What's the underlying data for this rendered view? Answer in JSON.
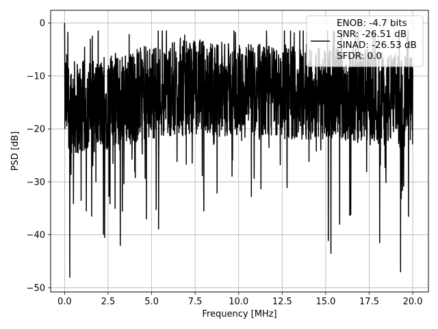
{
  "chart_data": {
    "type": "line",
    "title": "",
    "xlabel": "Frequency [MHz]",
    "ylabel": "PSD [dB]",
    "xlim": [
      -0.8,
      20.9
    ],
    "ylim": [
      -50.8,
      2.4
    ],
    "xticks": [
      0.0,
      2.5,
      5.0,
      7.5,
      10.0,
      12.5,
      15.0,
      17.5,
      20.0
    ],
    "xtick_labels": [
      "0.0",
      "2.5",
      "5.0",
      "7.5",
      "10.0",
      "12.5",
      "15.0",
      "17.5",
      "20.0"
    ],
    "yticks": [
      0,
      -10,
      -20,
      -30,
      -40,
      -50
    ],
    "ytick_labels": [
      "0",
      "−10",
      "−20",
      "−30",
      "−40",
      "−50"
    ],
    "grid": true,
    "legend_position": "top-right",
    "legend_entries": [
      "ENOB: -4.7 bits",
      "SNR: -26.51 dB",
      "SINAD: -26.53 dB",
      "SFDR: 0.0"
    ],
    "series": [
      {
        "color": "#000000",
        "x_range": [
          0.0,
          20.0
        ],
        "noise_center": [
          [
            0.0,
            -14
          ],
          [
            0.5,
            -16
          ],
          [
            1.5,
            -16
          ],
          [
            2.5,
            -15
          ],
          [
            5.0,
            -13
          ],
          [
            7.5,
            -12
          ],
          [
            10.0,
            -13
          ],
          [
            12.5,
            -13
          ],
          [
            15.0,
            -13
          ],
          [
            17.5,
            -14
          ],
          [
            20.0,
            -15
          ]
        ],
        "features": [
          {
            "x": 0.0,
            "y": 0.0
          },
          {
            "x": 0.05,
            "y": -18.5
          },
          {
            "x": 0.3,
            "y": -48.0
          },
          {
            "x": 0.95,
            "y": -33.5
          },
          {
            "x": 1.25,
            "y": -35.5
          },
          {
            "x": 2.3,
            "y": -40.5
          },
          {
            "x": 2.9,
            "y": -35.0
          },
          {
            "x": 3.2,
            "y": -42.0
          },
          {
            "x": 4.7,
            "y": -37.0
          },
          {
            "x": 8.0,
            "y": -35.5
          },
          {
            "x": 15.3,
            "y": -43.5
          },
          {
            "x": 15.8,
            "y": -38.0
          },
          {
            "x": 18.1,
            "y": -41.5
          },
          {
            "x": 19.3,
            "y": -47.0
          }
        ]
      }
    ]
  }
}
